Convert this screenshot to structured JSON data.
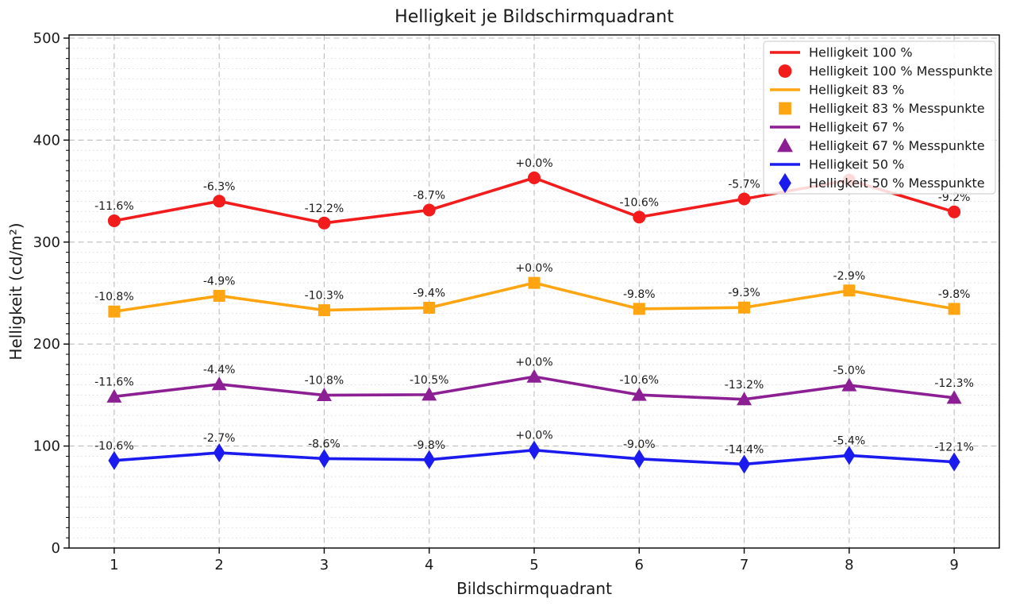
{
  "window": {
    "title": "Helligkeit je Bildschirmquadrant"
  },
  "chart_data": {
    "type": "line",
    "title": "Helligkeit je Bildschirmquadrant",
    "xlabel": "Bildschirmquadrant",
    "ylabel": "Helligkeit (cd/m²)",
    "x": [
      1,
      2,
      3,
      4,
      5,
      6,
      7,
      8,
      9
    ],
    "xlim": [
      0.57,
      9.43
    ],
    "ylim": [
      0,
      500
    ],
    "yticks": [
      0,
      100,
      200,
      300,
      400,
      500
    ],
    "y_minor_step": 10,
    "grid": {
      "major_style": "dashed",
      "minor_style": "dotted",
      "major_color": "#bdbdbd",
      "minor_color": "#d9d9d9"
    },
    "legend_position": "upper right",
    "axis_color": "#000000",
    "series": [
      {
        "name": "Helligkeit 100 %",
        "points_name": "Helligkeit 100 % Messpunkte",
        "color": "#f21c1c",
        "marker": "circle",
        "values": [
          320.9,
          340.1,
          318.7,
          331.4,
          363.0,
          324.5,
          342.3,
          360.8,
          329.6
        ],
        "point_labels": [
          "-11.6%",
          "-6.3%",
          "-12.2%",
          "-8.7%",
          "+0.0%",
          "-10.6%",
          "-5.7%",
          "-0.6%",
          "-9.2%"
        ]
      },
      {
        "name": "Helligkeit 83 %",
        "points_name": "Helligkeit 83 % Messpunkte",
        "color": "#ffa512",
        "marker": "square",
        "values": [
          231.9,
          247.3,
          233.2,
          235.6,
          260.0,
          234.5,
          235.8,
          252.5,
          234.5
        ],
        "point_labels": [
          "-10.8%",
          "-4.9%",
          "-10.3%",
          "-9.4%",
          "+0.0%",
          "-9.8%",
          "-9.3%",
          "-2.9%",
          "-9.8%"
        ]
      },
      {
        "name": "Helligkeit 67 %",
        "points_name": "Helligkeit 67 % Messpunkte",
        "color": "#8c1f94",
        "marker": "triangle",
        "values": [
          148.5,
          160.6,
          149.9,
          150.4,
          168.0,
          150.2,
          145.8,
          159.6,
          147.3
        ],
        "point_labels": [
          "-11.6%",
          "-4.4%",
          "-10.8%",
          "-10.5%",
          "+0.0%",
          "-10.6%",
          "-13.2%",
          "-5.0%",
          "-12.3%"
        ]
      },
      {
        "name": "Helligkeit 50 %",
        "points_name": "Helligkeit 50 % Messpunkte",
        "color": "#1b1bef",
        "marker": "diamond",
        "values": [
          85.8,
          93.4,
          87.7,
          86.6,
          96.0,
          87.4,
          82.2,
          90.8,
          84.4
        ],
        "point_labels": [
          "-10.6%",
          "-2.7%",
          "-8.6%",
          "-9.8%",
          "+0.0%",
          "-9.0%",
          "-14.4%",
          "-5.4%",
          "-12.1%"
        ]
      }
    ]
  }
}
